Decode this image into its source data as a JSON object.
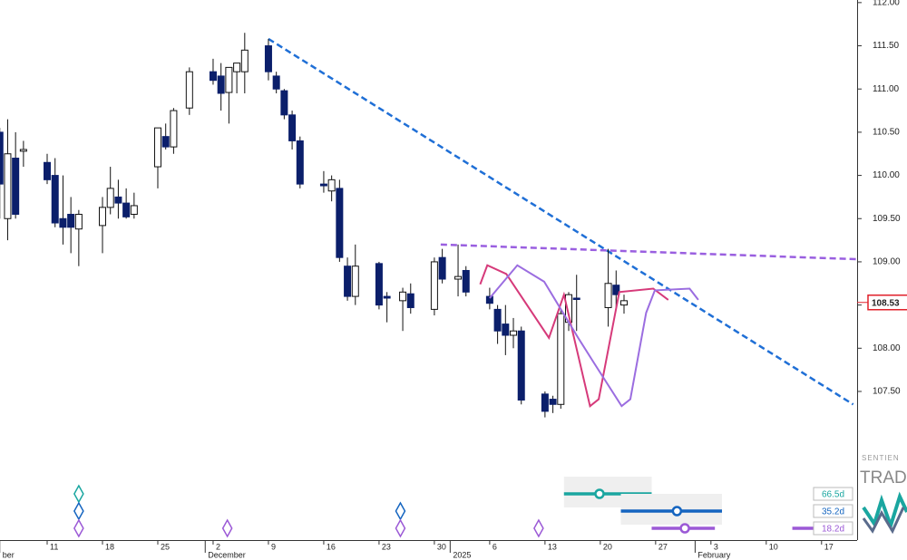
{
  "chart_data": {
    "type": "candlestick",
    "xlim": [
      -5.97,
      102.5
    ],
    "ylim": [
      105.78,
      112.03
    ],
    "xticks": [
      {
        "value": 0,
        "label": "11"
      },
      {
        "value": 7,
        "label": "18"
      },
      {
        "value": 14,
        "label": "25"
      },
      {
        "value": 21,
        "label": "2"
      },
      {
        "value": 28,
        "label": "9"
      },
      {
        "value": 35,
        "label": "16"
      },
      {
        "value": 42,
        "label": "23"
      },
      {
        "value": 49,
        "label": "30"
      },
      {
        "value": 56,
        "label": "6"
      },
      {
        "value": 63,
        "label": "13"
      },
      {
        "value": 70,
        "label": "20"
      },
      {
        "value": 77,
        "label": "27"
      },
      {
        "value": 84,
        "label": "3"
      },
      {
        "value": 91,
        "label": "10"
      },
      {
        "value": 98,
        "label": "17"
      }
    ],
    "month_ticks": [
      {
        "value": -6,
        "label": "ber"
      },
      {
        "value": 20,
        "label": "December"
      },
      {
        "value": 51,
        "label": "2025"
      },
      {
        "value": 82,
        "label": "February"
      }
    ],
    "yticks": [
      {
        "value": 107.5,
        "label": "107.50"
      },
      {
        "value": 108,
        "label": "108.00"
      },
      {
        "value": 108.5,
        "label": "108.50"
      },
      {
        "value": 109,
        "label": "109.00"
      },
      {
        "value": 109.5,
        "label": "109.50"
      },
      {
        "value": 110,
        "label": "110.00"
      },
      {
        "value": 110.5,
        "label": "110.50"
      },
      {
        "value": 111,
        "label": "111.00"
      },
      {
        "value": 111.5,
        "label": "111.50"
      },
      {
        "value": 112,
        "label": "112.00"
      }
    ],
    "up_color": "#ffffff",
    "down_color": "#0b1f6b",
    "x": [
      -6,
      -5,
      -4,
      -3,
      0,
      1,
      2,
      3,
      4,
      7,
      8,
      9,
      10,
      11,
      14,
      15,
      16,
      18,
      21,
      22,
      23,
      24,
      25,
      28,
      29,
      30,
      31,
      32,
      35,
      36,
      37,
      38,
      39,
      42,
      43,
      45,
      46,
      49,
      50,
      52,
      53,
      56,
      57,
      58,
      59,
      60,
      63,
      64,
      65,
      66,
      67,
      71,
      72,
      73
    ],
    "open": [
      110.5,
      109.5,
      110.2,
      110.28,
      110.15,
      110.0,
      109.5,
      109.55,
      109.38,
      109.42,
      109.63,
      109.75,
      109.68,
      109.55,
      110.1,
      110.45,
      110.33,
      110.78,
      111.2,
      111.15,
      110.96,
      111.2,
      111.2,
      111.5,
      111.15,
      110.98,
      110.7,
      110.4,
      109.9,
      109.82,
      109.85,
      108.95,
      108.6,
      108.98,
      108.6,
      108.55,
      108.63,
      108.45,
      109.05,
      108.8,
      108.9,
      108.6,
      108.45,
      108.28,
      108.15,
      108.2,
      107.47,
      107.41,
      107.35,
      108.3,
      108.58,
      108.47,
      108.73,
      108.5
    ],
    "high": [
      110.55,
      110.65,
      110.5,
      110.4,
      110.25,
      110.2,
      110.0,
      109.75,
      109.6,
      109.75,
      110.1,
      109.95,
      109.85,
      109.8,
      110.55,
      110.6,
      110.78,
      111.25,
      111.35,
      111.3,
      111.25,
      111.3,
      111.65,
      111.58,
      111.2,
      111.0,
      110.75,
      110.45,
      110.05,
      110.0,
      109.95,
      109.05,
      109.2,
      109.0,
      108.65,
      108.7,
      108.75,
      109.05,
      109.15,
      109.2,
      108.95,
      108.7,
      108.5,
      108.5,
      108.35,
      108.25,
      107.5,
      107.45,
      108.45,
      108.65,
      108.85,
      109.15,
      108.9,
      108.62
    ],
    "low": [
      109.5,
      109.25,
      109.5,
      110.1,
      109.9,
      109.4,
      109.2,
      109.1,
      108.95,
      109.1,
      109.55,
      109.5,
      109.5,
      109.5,
      109.85,
      110.3,
      110.25,
      110.7,
      111.05,
      110.75,
      110.6,
      110.95,
      110.95,
      111.1,
      110.95,
      110.65,
      110.3,
      109.85,
      109.8,
      109.7,
      109.0,
      108.55,
      108.5,
      108.45,
      108.3,
      108.2,
      108.4,
      108.38,
      108.75,
      108.6,
      108.6,
      108.45,
      108.05,
      107.92,
      108.0,
      107.35,
      107.2,
      107.25,
      107.3,
      108.2,
      108.2,
      108.25,
      108.45,
      108.4
    ],
    "close": [
      109.9,
      110.25,
      109.55,
      110.3,
      109.95,
      109.45,
      109.4,
      109.4,
      109.55,
      109.63,
      109.85,
      109.68,
      109.52,
      109.65,
      110.55,
      110.33,
      110.75,
      111.2,
      111.1,
      110.95,
      111.25,
      111.3,
      111.45,
      111.2,
      111.0,
      110.7,
      110.4,
      109.9,
      109.88,
      109.95,
      109.05,
      108.6,
      108.95,
      108.5,
      108.58,
      108.65,
      108.47,
      109.0,
      108.8,
      108.83,
      108.65,
      108.52,
      108.2,
      108.15,
      108.2,
      107.4,
      107.27,
      107.35,
      108.4,
      108.62,
      108.57,
      108.75,
      108.62,
      108.55
    ],
    "last_price": 108.53,
    "last_price_color": "#e0202a",
    "trendlines": [
      {
        "color": "#1f6fd6",
        "x": [
          28,
          102
        ],
        "y": [
          111.58,
          107.35
        ]
      },
      {
        "color": "#9a5fe0",
        "x": [
          49.8,
          102.5
        ],
        "y": [
          109.2,
          109.03
        ]
      }
    ],
    "projections": [
      {
        "color": "#d63a7a",
        "x": [
          54.8,
          55.7,
          58.1,
          63.5,
          65.4,
          68.7,
          69.8,
          72.4,
          76.7,
          78.6
        ],
        "y": [
          108.74,
          108.96,
          108.86,
          108.12,
          108.62,
          107.33,
          107.41,
          108.65,
          108.69,
          108.56
        ]
      },
      {
        "color": "#9b6de0",
        "x": [
          56.0,
          59.5,
          62.9,
          67.2,
          69.2,
          72.7,
          73.8,
          75.8,
          76.9,
          81.3,
          82.4
        ],
        "y": [
          108.58,
          108.96,
          108.77,
          108.12,
          107.83,
          107.33,
          107.41,
          108.41,
          108.67,
          108.69,
          108.56
        ]
      }
    ],
    "cycles": [
      {
        "label": "66.5d",
        "color": "#1aa6a0",
        "markers": [
          4
        ],
        "ranges": [
          [
            65.4,
            76.5
          ]
        ],
        "peaks": [
          69.9
        ]
      },
      {
        "label": "35.2d",
        "color": "#1565c0",
        "markers": [
          4,
          44.7
        ],
        "ranges": [
          [
            72.6,
            85.4
          ]
        ],
        "peaks": [
          79.7
        ]
      },
      {
        "label": "18.2d",
        "color": "#9b59d6",
        "markers": [
          4,
          22.8,
          44.7,
          62.2
        ],
        "ranges": [
          [
            76.5,
            84.5
          ],
          [
            94.3,
            100.8
          ]
        ],
        "peaks": [
          80.7
        ]
      }
    ],
    "logo": [
      "SENTIEN",
      "TRADE"
    ]
  }
}
